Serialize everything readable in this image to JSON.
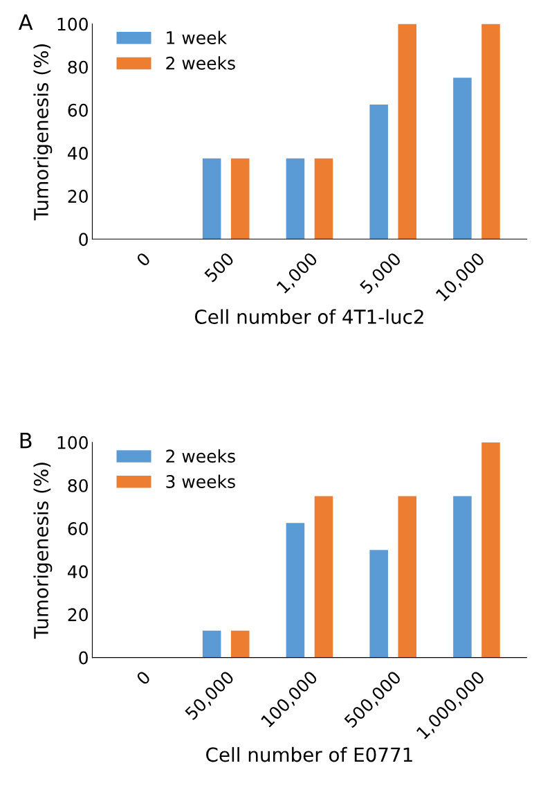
{
  "chart_data": [
    {
      "type": "bar",
      "title": "A",
      "xlabel": "Cell number of 4T1-luc2",
      "ylabel": "Tumorigenesis (%)",
      "categories": [
        "0",
        "500",
        "1,000",
        "5,000",
        "10,000"
      ],
      "series": [
        {
          "name": "1 week",
          "color": "#5b9bd5",
          "values": [
            0,
            37.5,
            37.5,
            62.5,
            75
          ]
        },
        {
          "name": "2 weeks",
          "color": "#ed7d31",
          "values": [
            0,
            37.5,
            37.5,
            100,
            100
          ]
        }
      ],
      "ylim": [
        0,
        100
      ],
      "yticks": [
        0,
        20,
        40,
        60,
        80,
        100
      ],
      "grid": false,
      "legend": "top left"
    },
    {
      "type": "bar",
      "title": "B",
      "xlabel": "Cell number of E0771",
      "ylabel": "Tumorigenesis (%)",
      "categories": [
        "0",
        "50,000",
        "100,000",
        "500,000",
        "1,000,000"
      ],
      "series": [
        {
          "name": "2 weeks",
          "color": "#5b9bd5",
          "values": [
            0,
            12.5,
            62.5,
            50,
            75
          ]
        },
        {
          "name": "3 weeks",
          "color": "#ed7d31",
          "values": [
            0,
            12.5,
            75,
            75,
            100
          ]
        }
      ],
      "ylim": [
        0,
        100
      ],
      "yticks": [
        0,
        20,
        40,
        60,
        80,
        100
      ],
      "grid": false,
      "legend": "top left"
    }
  ]
}
